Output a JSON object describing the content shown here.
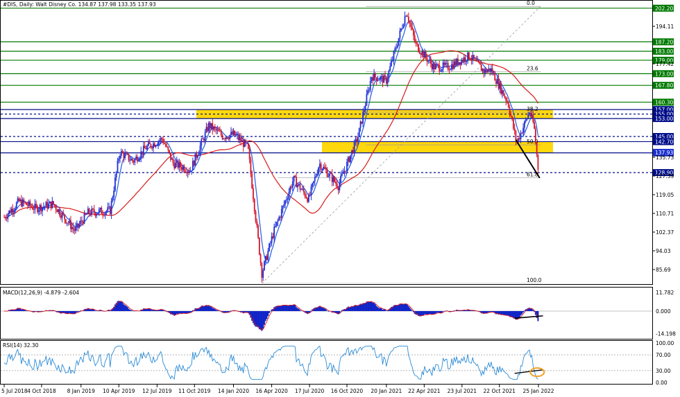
{
  "chart_data": [
    {
      "type": "candlestick",
      "header": {
        "symbol": "#DIS",
        "timeframe": "Daily",
        "name": "Walt Disney Co.",
        "ohlc": "134.87 137.98 133.35 137.93"
      },
      "y_ticks": [
        {
          "v": 194.11,
          "t": "194.11"
        },
        {
          "v": 177.42,
          "t": "177.42"
        },
        {
          "v": 135.73,
          "t": "135.73"
        },
        {
          "v": 127.39,
          "t": "127.39"
        },
        {
          "v": 119.05,
          "t": "119.05"
        },
        {
          "v": 110.71,
          "t": "110.71"
        },
        {
          "v": 102.37,
          "t": "102.37"
        },
        {
          "v": 94.03,
          "t": "94.03"
        },
        {
          "v": 85.69,
          "t": "85.69"
        }
      ],
      "x_ticks": [
        "5 Jul 2018",
        "4 Oct 2018",
        "8 Jan 2019",
        "10 Apr 2019",
        "12 Jul 2019",
        "11 Oct 2019",
        "14 Jan 2020",
        "16 Apr 2020",
        "17 Jul 2020",
        "16 Oct 2020",
        "20 Jan 2021",
        "22 Apr 2021",
        "23 Jul 2021",
        "22 Oct 2021",
        "25 Jan 2022"
      ],
      "price_levels": [
        {
          "value": 202.2,
          "text": "202.20",
          "style": "solid",
          "color": "#007a00"
        },
        {
          "value": 187.2,
          "text": "187.20",
          "style": "solid",
          "color": "#007a00"
        },
        {
          "value": 183.0,
          "text": "183.00",
          "style": "solid",
          "color": "#007a00"
        },
        {
          "value": 179.0,
          "text": "179.00",
          "style": "solid",
          "color": "#007a00"
        },
        {
          "value": 173.0,
          "text": "173.00",
          "style": "solid",
          "color": "#007a00"
        },
        {
          "value": 167.8,
          "text": "167.80",
          "style": "solid",
          "color": "#007a00"
        },
        {
          "value": 160.3,
          "text": "160.30",
          "style": "solid",
          "color": "#007a00"
        },
        {
          "value": 157.0,
          "text": "157.00",
          "style": "solid",
          "color": "#000d8a"
        },
        {
          "value": 155.0,
          "text": "155.00",
          "style": "dashed",
          "color": "#000d8a"
        },
        {
          "value": 153.0,
          "text": "153.00",
          "style": "solid",
          "color": "#000d8a"
        },
        {
          "value": 145.0,
          "text": "145.00",
          "style": "dashed",
          "color": "#000d8a"
        },
        {
          "value": 142.7,
          "text": "142.70",
          "style": "solid",
          "color": "#000d8a"
        },
        {
          "value": 137.7,
          "text": "137.70",
          "style": "solid",
          "color": "#000d8a"
        },
        {
          "value": 128.9,
          "text": "128.90",
          "style": "dashed",
          "color": "#000d8a"
        }
      ],
      "price_label_colors": {
        "green": "#007a00",
        "blue": "#000d8a",
        "current": "#1a2fd1"
      },
      "current_price": {
        "value": 137.93,
        "text": "137.93"
      },
      "zones": [
        {
          "from": 153.0,
          "to": 157.0,
          "color": "#ffd500"
        },
        {
          "from": 137.7,
          "to": 142.7,
          "color": "#ffd500"
        }
      ],
      "fibonacci": [
        {
          "text": "0.0"
        },
        {
          "text": "23.6"
        },
        {
          "text": "38.2"
        },
        {
          "text": "50.0"
        },
        {
          "text": "61.8"
        },
        {
          "text": "100.0"
        }
      ],
      "colors": {
        "up": "#1f2fd6",
        "down": "#d4142a",
        "ma_fast": "#1f5be0",
        "ma_slow": "#d91818",
        "trendline": "#000000"
      }
    },
    {
      "type": "histogram",
      "title": "MACD(12,26,9) -4.879 -2.604",
      "y_ticks": [
        {
          "v": 11.782,
          "t": "11.782"
        },
        {
          "v": 0,
          "t": "0.000"
        },
        {
          "v": -14.198,
          "t": "-14.198"
        }
      ],
      "colors": {
        "hist": "#1024c8",
        "signal": "#e01818",
        "divergence_line": "#000000"
      }
    },
    {
      "type": "line",
      "title": "RSI(14) 32.30",
      "y_ticks": [
        {
          "v": 100,
          "t": "100.00"
        },
        {
          "v": 70,
          "t": "70.00"
        },
        {
          "v": 30,
          "t": "30.00"
        },
        {
          "v": 0,
          "t": "0.00"
        }
      ],
      "colors": {
        "line": "#2a8ad6",
        "highlight": "#f0a020",
        "divergence_line": "#000000"
      }
    }
  ]
}
